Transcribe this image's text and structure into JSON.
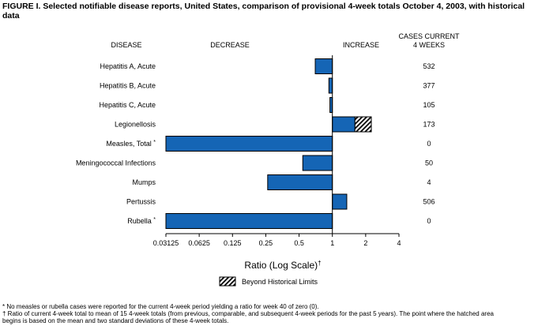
{
  "title": "FIGURE I. Selected notifiable disease reports, United States, comparison of provisional 4-week totals October 4, 2003, with historical data",
  "headers": {
    "disease": "DISEASE",
    "decrease": "DECREASE",
    "increase": "INCREASE",
    "cases_line1": "CASES CURRENT",
    "cases_line2": "4 WEEKS"
  },
  "footnotes": [
    "* No measles or rubella cases were reported for the current 4-week period yielding a ratio for week 40 of zero (0).",
    "† Ratio of current 4-week total to mean of 15 4-week totals (from previous, comparable, and subsequent 4-week periods for the past 5 years). The point where the hatched area",
    "begins is based on the mean and two standard deviations of these 4-week totals."
  ],
  "chart_data": {
    "type": "bar",
    "orientation": "horizontal",
    "scale": "log2",
    "baseline": 1,
    "xlim": [
      0.03125,
      4
    ],
    "xticks": [
      "0.03125",
      "0.0625",
      "0.125",
      "0.25",
      "0.5",
      "1",
      "2",
      "4"
    ],
    "xtick_values": [
      0.03125,
      0.0625,
      0.125,
      0.25,
      0.5,
      1,
      2,
      4
    ],
    "xlabel": "Ratio (Log Scale)",
    "xlabel_mark": "†",
    "legend": "Beyond Historical Limits",
    "bar_color": "#1565b5",
    "categories": [
      "Hepatitis A, Acute",
      "Hepatitis B, Acute",
      "Hepatitis C, Acute",
      "Legionellosis",
      "Measles, Total",
      "Meningococcal Infections",
      "Mumps",
      "Pertussis",
      "Rubella"
    ],
    "category_marks": [
      "",
      "",
      "",
      "",
      "*",
      "",
      "",
      "",
      "*"
    ],
    "ratios": [
      0.7,
      0.93,
      0.95,
      2.25,
      0.03125,
      0.54,
      0.26,
      1.35,
      0.03125
    ],
    "beyond_limit_from": [
      null,
      null,
      null,
      1.6,
      null,
      null,
      null,
      null,
      null
    ],
    "cases": [
      "532",
      "377",
      "105",
      "173",
      "0",
      "50",
      "4",
      "506",
      "0"
    ]
  }
}
